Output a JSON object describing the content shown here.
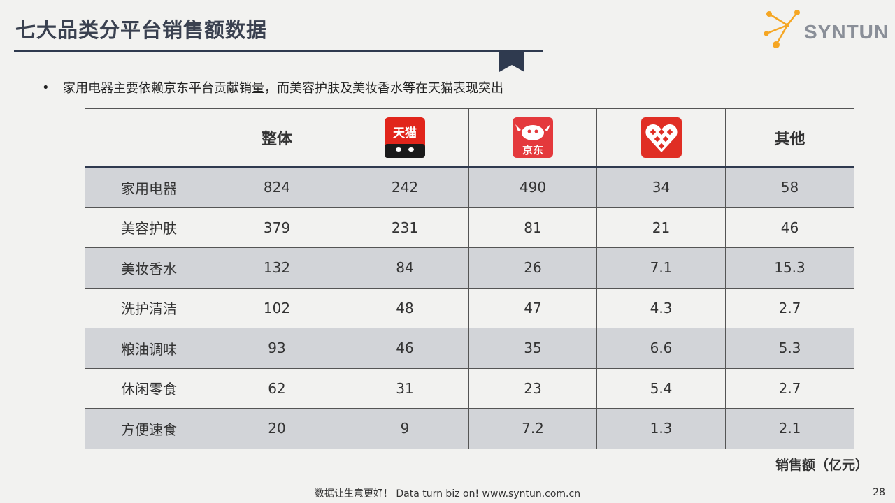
{
  "header": {
    "title": "七大品类分平台销售额数据",
    "logo_text": "SYNTUN"
  },
  "bullet": {
    "text": "家用电器主要依赖京东平台贡献销量，而美容护肤及美妆香水等在天猫表现突出"
  },
  "table": {
    "columns": [
      "",
      "整体",
      "tmall-logo",
      "jd-logo",
      "pinduoduo-logo",
      "其他"
    ],
    "logo_labels": {
      "tmall": "天猫",
      "jd": "京东"
    },
    "rows": [
      {
        "category": "家用电器",
        "values": [
          "824",
          "242",
          "490",
          "34",
          "58"
        ]
      },
      {
        "category": "美容护肤",
        "values": [
          "379",
          "231",
          "81",
          "21",
          "46"
        ]
      },
      {
        "category": "美妆香水",
        "values": [
          "132",
          "84",
          "26",
          "7.1",
          "15.3"
        ]
      },
      {
        "category": "洗护清洁",
        "values": [
          "102",
          "48",
          "47",
          "4.3",
          "2.7"
        ]
      },
      {
        "category": "粮油调味",
        "values": [
          "93",
          "46",
          "35",
          "6.6",
          "5.3"
        ]
      },
      {
        "category": "休闲零食",
        "values": [
          "62",
          "31",
          "23",
          "5.4",
          "2.7"
        ]
      },
      {
        "category": "方便速食",
        "values": [
          "20",
          "9",
          "7.2",
          "1.3",
          "2.1"
        ]
      }
    ]
  },
  "unit_note": "销售额（亿元）",
  "footer": {
    "text": "数据让生意更好！ Data turn biz on!  www.syntun.com.cn",
    "page_number": "28"
  },
  "colors": {
    "title": "#3a4150",
    "rule": "#2f3a4f",
    "shade_row": "#d2d4d8",
    "tmall_red": "#e1251b",
    "jd_red": "#e4393c",
    "pdd_red": "#e02e24",
    "logo_orange": "#f5a623"
  }
}
